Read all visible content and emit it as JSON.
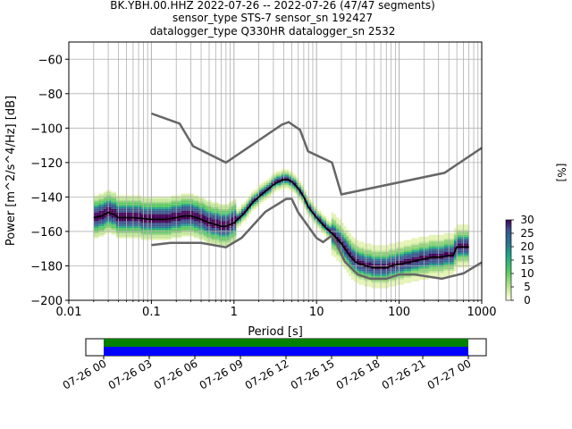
{
  "header": {
    "title_lines": [
      "BK.YBH.00.HHZ   2022-07-26 -- 2022-07-26  (47/47 segments)",
      "sensor_type STS-7 sensor_sn 192427",
      "datalogger_type Q330HR datalogger_sn 2532"
    ]
  },
  "colors": {
    "mean_line": "#000000",
    "noise_model": "#666666",
    "grid": "#b0b0b0",
    "data_available": "#0000ff",
    "gap_free": "#008000"
  },
  "chart_data": [
    {
      "type": "heatmap",
      "subtype": "probabilistic-power-spectral-density",
      "xlabel": "Period [s]",
      "ylabel": "Power [m^2/s^4/Hz] [dB]",
      "xscale": "log",
      "xlim": [
        0.01,
        1000
      ],
      "ylim": [
        -200,
        -50
      ],
      "x_tick_labels": [
        "0.01",
        "0.1",
        "1",
        "10",
        "100",
        "1000"
      ],
      "y_ticks": [
        -60,
        -80,
        -100,
        -120,
        -140,
        -160,
        -180,
        -200
      ],
      "grid": true,
      "colorbar": {
        "label": "[%]",
        "ticks": [
          0,
          5,
          10,
          15,
          20,
          25,
          30
        ],
        "range": [
          0,
          30
        ],
        "colormap": "viridis-reversed-light"
      },
      "series": [
        {
          "role": "mean",
          "x": [
            0.02,
            0.025,
            0.03,
            0.035,
            0.04,
            0.06,
            0.1,
            0.15,
            0.2,
            0.25,
            0.3,
            0.4,
            0.5,
            0.6,
            0.7,
            0.8,
            1.0,
            1.3,
            1.7,
            2.0,
            2.5,
            3.0,
            3.5,
            4.0,
            4.5,
            5.0,
            6.0,
            7.0,
            8.0,
            10,
            13,
            16,
            20,
            25,
            30,
            40,
            50,
            60,
            70,
            80,
            100,
            130,
            160,
            200,
            250,
            300,
            400,
            450,
            500,
            700
          ],
          "y": [
            -152,
            -151,
            -149,
            -150,
            -152,
            -152,
            -153,
            -153,
            -152,
            -151,
            -151,
            -153,
            -155,
            -156,
            -157,
            -157,
            -155,
            -150,
            -143,
            -140,
            -136,
            -133,
            -131,
            -130,
            -130,
            -131,
            -135,
            -140,
            -146,
            -152,
            -158,
            -162,
            -167,
            -174,
            -178,
            -180,
            -181,
            -181,
            -181,
            -180,
            -179,
            -178,
            -177,
            -176,
            -175,
            -175,
            -174,
            -174,
            -169,
            -169
          ]
        },
        {
          "role": "noise-model-high",
          "x": [
            0.1,
            0.22,
            0.32,
            0.8,
            3.8,
            4.6,
            6.3,
            7.9,
            15.4,
            20,
            354.8,
            1000
          ],
          "y": [
            -91.5,
            -97.4,
            -110.5,
            -120,
            -98,
            -96.5,
            -101,
            -113.5,
            -120,
            -138.5,
            -126,
            -111.5
          ]
        },
        {
          "role": "noise-model-low",
          "x": [
            0.1,
            0.17,
            0.4,
            0.8,
            1.24,
            2.4,
            4.3,
            5,
            6,
            10,
            12,
            15.6,
            21.9,
            31.6,
            45,
            70,
            101,
            154,
            328,
            600,
            1000
          ],
          "y": [
            -168,
            -166.7,
            -166.7,
            -169.2,
            -163.7,
            -148.6,
            -141.1,
            -141.1,
            -149,
            -163.8,
            -166.2,
            -162.1,
            -177.5,
            -185,
            -187.5,
            -187.5,
            -185,
            -185,
            -187.5,
            -184.4,
            -178
          ]
        }
      ]
    },
    {
      "type": "bar",
      "subtype": "data-coverage-timeline",
      "x_tick_labels": [
        "07-26 00",
        "07-26 03",
        "07-26 06",
        "07-26 09",
        "07-26 12",
        "07-26 15",
        "07-26 18",
        "07-26 21",
        "07-27 00"
      ],
      "segments": 47,
      "coverage_start": "07-26 00",
      "coverage_end": "07-27 00",
      "fraction_covered": 1.0
    }
  ]
}
